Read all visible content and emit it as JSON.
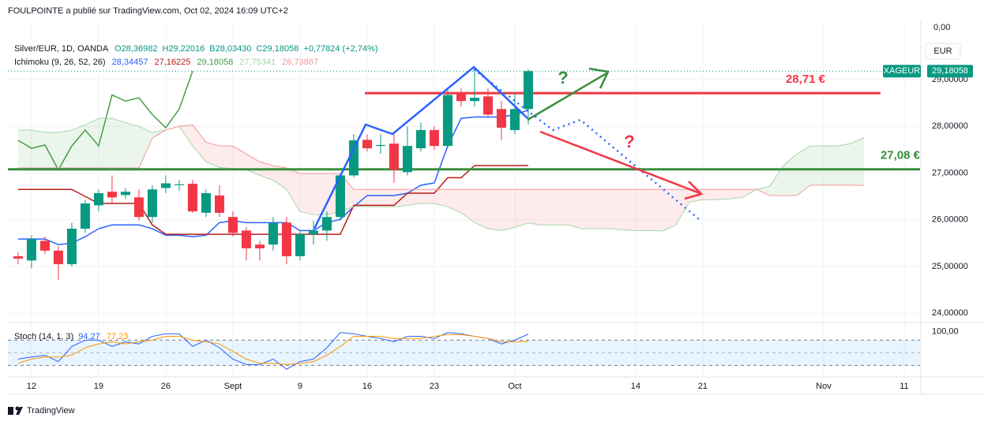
{
  "header": {
    "publisher": "FOULPOINTE a publié sur TradingView.com, Oct 02, 2024 16:09 UTC+2",
    "footer": "TradingView",
    "questions": [
      "?",
      "?"
    ]
  },
  "chart_data": [
    {
      "type": "candlestick",
      "title": "Silver/EUR, 1D, OANDA",
      "ohlc_labels": [
        "O28,36982",
        "H29,22016",
        "B28,03430",
        "C29,18058",
        "+0,77824 (+2,74%)"
      ],
      "up_color": "#089981",
      "down_color": "#f23645",
      "open": [
        25.22,
        25.13,
        25.55,
        25.34,
        25.05,
        25.81,
        26.31,
        26.6,
        26.53,
        26.48,
        26.06,
        26.68,
        26.74,
        26.77,
        26.15,
        26.52,
        26.06,
        25.77,
        25.47,
        25.47,
        25.94,
        25.22,
        25.69,
        25.77,
        26.06,
        26.95,
        27.71,
        27.58,
        27.63,
        27.02,
        27.53,
        27.92,
        27.58,
        28.71,
        28.54,
        28.64,
        28.37,
        27.92,
        28.36982
      ],
      "high": [
        25.3,
        25.67,
        25.64,
        25.44,
        25.94,
        26.43,
        26.65,
        26.95,
        26.68,
        26.65,
        26.74,
        26.95,
        26.85,
        26.85,
        26.65,
        26.74,
        26.18,
        25.84,
        25.55,
        26.06,
        26.06,
        25.77,
        25.98,
        26.18,
        26.99,
        27.83,
        27.83,
        27.83,
        27.87,
        28.0,
        28.08,
        28.0,
        28.81,
        28.81,
        29.21,
        28.81,
        28.54,
        28.71,
        29.22016
      ],
      "low": [
        25.05,
        24.96,
        25.27,
        24.71,
        25.0,
        25.72,
        26.18,
        26.35,
        26.45,
        25.98,
        25.94,
        26.57,
        26.62,
        26.15,
        26.06,
        26.06,
        25.64,
        25.13,
        25.13,
        25.34,
        25.05,
        25.13,
        25.47,
        25.55,
        25.98,
        26.9,
        27.46,
        27.41,
        26.79,
        26.95,
        27.46,
        27.49,
        27.53,
        28.42,
        28.42,
        28.2,
        27.7,
        27.83,
        28.0343
      ],
      "close": [
        25.17,
        25.59,
        25.34,
        25.05,
        25.81,
        26.35,
        26.57,
        26.48,
        26.6,
        26.06,
        26.65,
        26.78,
        26.76,
        26.18,
        26.57,
        26.15,
        25.72,
        25.39,
        25.39,
        25.93,
        25.22,
        25.69,
        25.77,
        26.06,
        26.95,
        27.7,
        27.53,
        27.6,
        27.07,
        27.58,
        27.92,
        27.58,
        28.67,
        28.54,
        28.61,
        28.25,
        27.97,
        28.37,
        29.18058
      ],
      "ichimoku": {
        "label": "Ichimoku (9, 26, 52, 26)",
        "cloud": true,
        "lines": [
          {
            "color": "#2962ff",
            "value_label": "28,34457",
            "values": [
              25.59,
              25.59,
              25.59,
              25.47,
              25.5,
              25.64,
              25.81,
              25.89,
              25.89,
              25.89,
              25.81,
              25.67,
              25.67,
              25.64,
              25.67,
              25.94,
              25.98,
              25.94,
              25.94,
              25.94,
              25.94,
              25.77,
              25.77,
              25.94,
              26.01,
              26.28,
              26.52,
              26.52,
              26.52,
              26.57,
              26.74,
              26.79,
              27.58,
              28.17,
              28.2,
              28.2,
              28.2,
              28.25,
              28.34457
            ]
          },
          {
            "color": "#b71c1c",
            "value_label": "27,16225",
            "values": [
              26.65,
              26.65,
              26.65,
              26.65,
              26.65,
              26.5,
              26.35,
              26.35,
              26.35,
              26.35,
              25.89,
              25.69,
              25.69,
              25.69,
              25.69,
              25.69,
              25.69,
              25.69,
              25.69,
              25.69,
              25.69,
              25.69,
              25.69,
              25.69,
              25.69,
              26.31,
              26.31,
              26.31,
              26.31,
              26.57,
              26.57,
              26.57,
              26.9,
              26.9,
              27.16,
              27.16,
              27.16,
              27.16,
              27.16225
            ]
          },
          {
            "color": "#43a047",
            "value_label": "29,18058",
            "values": [
              27.7,
              27.53,
              27.6,
              27.07,
              27.58,
              27.92,
              27.58,
              28.67,
              28.54,
              28.61,
              28.25,
              27.97,
              28.37,
              29.18058,
              null,
              null,
              null,
              null,
              null,
              null,
              null,
              null,
              null,
              null,
              null,
              null,
              null,
              null,
              null,
              null,
              null,
              null,
              null,
              null,
              null,
              null,
              null,
              null,
              null
            ]
          },
          {
            "color": "#a5d6a7",
            "value_label": "27,75341",
            "values": [
              27.92,
              27.92,
              27.87,
              27.87,
              27.92,
              28.03,
              28.17,
              28.17,
              28.08,
              28.0,
              27.87,
              27.92,
              28.0,
              27.58,
              27.24,
              27.12,
              27.09,
              27.07,
              26.95,
              26.85,
              26.65,
              26.18,
              26.11,
              26.11,
              26.18,
              26.28,
              26.28,
              26.28,
              26.28,
              26.31,
              26.35,
              26.35,
              26.28,
              26.15,
              25.94,
              25.81,
              25.77,
              25.84,
              25.93,
              25.89,
              25.89,
              25.89,
              25.81,
              25.81,
              25.81,
              25.79,
              25.77,
              25.77,
              25.76,
              25.89,
              26.38,
              26.43,
              26.43,
              26.45,
              26.48,
              26.65,
              26.72,
              27.16,
              27.41,
              27.58,
              27.58,
              27.58,
              27.63,
              27.75341
            ]
          },
          {
            "color": "#ef9a9a",
            "value_label": "26,73867",
            "values": [
              27.11,
              27.11,
              27.11,
              27.11,
              27.11,
              27.11,
              27.11,
              27.11,
              27.11,
              27.11,
              27.75,
              27.92,
              28.0,
              28.03,
              27.66,
              27.58,
              27.58,
              27.41,
              27.24,
              27.16,
              27.11,
              26.99,
              26.99,
              26.99,
              26.99,
              26.65,
              26.65,
              26.65,
              26.65,
              26.65,
              26.65,
              26.65,
              26.65,
              26.65,
              26.65,
              26.65,
              26.65,
              26.65,
              26.65,
              26.65,
              26.65,
              26.65,
              26.65,
              26.65,
              26.65,
              26.65,
              26.65,
              26.65,
              26.65,
              26.65,
              26.65,
              26.65,
              26.65,
              26.65,
              26.65,
              26.65,
              26.52,
              26.52,
              26.52,
              26.74,
              26.74,
              26.74,
              26.74,
              26.73867
            ]
          }
        ]
      },
      "levels": [
        {
          "value": 28.71,
          "label": "28,71 €",
          "color": "#f23645"
        },
        {
          "value": 27.08,
          "label": "27,08 €",
          "color": "#388e3c"
        }
      ],
      "price_tag": {
        "symbol": "XAGEUR",
        "label": "29,18058",
        "color": "#089981"
      },
      "currency": "EUR",
      "scale_top_label": "0,00",
      "xlim": [
        -0.76,
        67.18
      ],
      "ylim": [
        23.82,
        30.23
      ],
      "yticks": [
        {
          "value": 24,
          "label": "24,00000"
        },
        {
          "value": 25,
          "label": "25,00000"
        },
        {
          "value": 26,
          "label": "26,00000"
        },
        {
          "value": 27,
          "label": "27,00000"
        },
        {
          "value": 28,
          "label": "28,00000"
        },
        {
          "value": 29,
          "label": "29,00000"
        }
      ],
      "xticks": [
        {
          "value": 1,
          "label": "12"
        },
        {
          "value": 6,
          "label": "19"
        },
        {
          "value": 11,
          "label": "26"
        },
        {
          "value": 16,
          "label": "Sept"
        },
        {
          "value": 21,
          "label": "9"
        },
        {
          "value": 26,
          "label": "16"
        },
        {
          "value": 31,
          "label": "23"
        },
        {
          "value": 37,
          "label": "Oct"
        },
        {
          "value": 46,
          "label": "14"
        },
        {
          "value": 51,
          "label": "21"
        },
        {
          "value": 60,
          "label": "Nov"
        },
        {
          "value": 66,
          "label": "11"
        }
      ],
      "grid": true
    },
    {
      "type": "line",
      "title": "Stoch (14, 1, 3)",
      "ylim": [
        -7.3,
        120
      ],
      "yticks": [
        {
          "value": 100,
          "label": "100,00"
        }
      ],
      "band": [
        20,
        80
      ],
      "midline": 50,
      "series": [
        {
          "color": "#2962ff",
          "value_label": "94,27",
          "values": [
            35,
            40,
            44,
            29,
            65,
            80,
            80,
            65,
            76,
            71,
            89,
            95,
            95,
            65,
            80,
            62,
            35,
            22,
            22,
            35,
            11,
            29,
            35,
            62,
            98,
            95,
            89,
            84,
            76,
            89,
            89,
            84,
            98,
            95,
            89,
            84,
            71,
            80,
            94.27
          ]
        },
        {
          "color": "#ff9800",
          "value_label": "77,23",
          "values": [
            25,
            35,
            40,
            40,
            44,
            62,
            71,
            76,
            71,
            76,
            80,
            89,
            89,
            80,
            76,
            71,
            53,
            35,
            25,
            25,
            22,
            25,
            29,
            44,
            65,
            89,
            89,
            89,
            84,
            84,
            84,
            89,
            93,
            93,
            89,
            84,
            76,
            76,
            77.23
          ]
        }
      ]
    }
  ]
}
